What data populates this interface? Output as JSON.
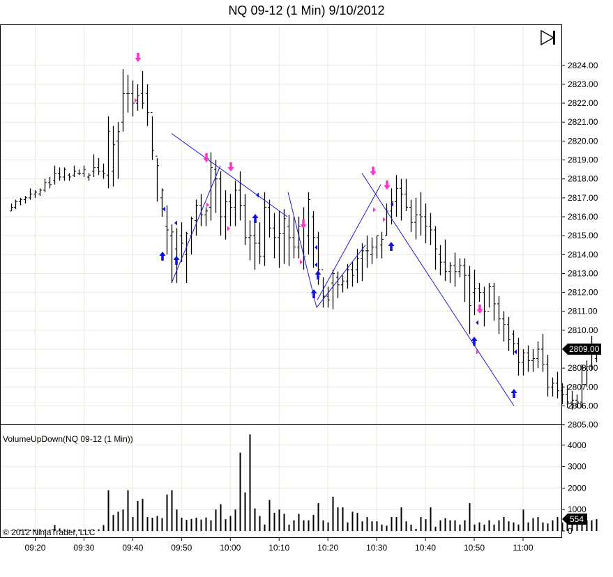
{
  "title": "NQ 09-12 (1 Min)  9/10/2012",
  "indicator_label": "VolumeUpDown(NQ 09-12 (1 Min))",
  "copyright": "© 2012 NinjaTrader, LLC",
  "last_price_label": "2809.00",
  "last_volume_label": "554",
  "colors": {
    "bar": "#000000",
    "trendline": "#1a1ad6",
    "buy_arrow": "#1010e0",
    "sell_arrow": "#ff33cc",
    "grid": "#ece7dc",
    "flag_bg": "#000000"
  },
  "chart_data": {
    "type": "ohlc",
    "x_tick_labels": [
      "09:20",
      "09:30",
      "09:40",
      "09:50",
      "10:00",
      "10:10",
      "10:20",
      "10:30",
      "10:40",
      "10:50",
      "11:00"
    ],
    "price_axis": {
      "ylim": [
        2804.0,
        2824.75
      ],
      "tick_labels": [
        "2805.00",
        "2806.00",
        "2807.00",
        "2808.00",
        "2809.00",
        "2810.00",
        "2811.00",
        "2812.00",
        "2813.00",
        "2814.00",
        "2815.00",
        "2816.00",
        "2817.00",
        "2818.00",
        "2819.00",
        "2820.00",
        "2821.00",
        "2822.00",
        "2823.00",
        "2824.00"
      ]
    },
    "volume_axis": {
      "ylim": [
        0,
        4700
      ],
      "tick_labels": [
        "0",
        "1000",
        "2000",
        "3000",
        "4000"
      ]
    },
    "bars_start_time": "09:15",
    "bars": [
      [
        2816.3,
        2816.7,
        2816.3,
        2816.5
      ],
      [
        2816.5,
        2816.9,
        2816.4,
        2816.8
      ],
      [
        2816.8,
        2817.0,
        2816.6,
        2816.9
      ],
      [
        2816.9,
        2817.1,
        2816.7,
        2817.0
      ],
      [
        2817.0,
        2817.5,
        2816.9,
        2817.2
      ],
      [
        2817.2,
        2817.4,
        2817.0,
        2817.3
      ],
      [
        2817.2,
        2817.5,
        2817.1,
        2817.4
      ],
      [
        2817.4,
        2818.0,
        2817.3,
        2817.8
      ],
      [
        2817.8,
        2818.1,
        2817.5,
        2817.7
      ],
      [
        2817.9,
        2818.7,
        2817.7,
        2818.3
      ],
      [
        2818.3,
        2818.6,
        2817.9,
        2818.1
      ],
      [
        2818.1,
        2818.6,
        2817.9,
        2818.5
      ],
      [
        2818.2,
        2818.3,
        2817.9,
        2818.1
      ],
      [
        2818.2,
        2818.7,
        2818.1,
        2818.4
      ],
      [
        2818.3,
        2818.5,
        2818.2,
        2818.3
      ],
      [
        2818.3,
        2818.7,
        2818.1,
        2818.5
      ],
      [
        2818.1,
        2818.3,
        2817.9,
        2818.2
      ],
      [
        2818.4,
        2819.3,
        2818.1,
        2818.6
      ],
      [
        2818.6,
        2819.1,
        2818.2,
        2818.4
      ],
      [
        2818.4,
        2818.8,
        2818.0,
        2818.3
      ],
      [
        2818.2,
        2821.3,
        2817.5,
        2820.5
      ],
      [
        2818.4,
        2820.8,
        2817.6,
        2819.8
      ],
      [
        2820.0,
        2821.0,
        2818.0,
        2820.5
      ],
      [
        2821.0,
        2823.8,
        2820.5,
        2822.5
      ],
      [
        2822.5,
        2823.5,
        2821.5,
        2822.5
      ],
      [
        2822.5,
        2823.2,
        2821.3,
        2822.0
      ],
      [
        2822.0,
        2823.0,
        2821.6,
        2822.4
      ],
      [
        2822.5,
        2823.7,
        2821.7,
        2822.0
      ],
      [
        2822.5,
        2823.0,
        2820.8,
        2821.5
      ],
      [
        2821.5,
        2821.3,
        2819.0,
        2819.5
      ],
      [
        2819.2,
        2819.1,
        2816.8,
        2818.7
      ],
      [
        2817.0,
        2817.5,
        2816.0,
        2817.4
      ],
      [
        2815.5,
        2816.6,
        2814.0,
        2815.3
      ],
      [
        2815.0,
        2815.6,
        2812.5,
        2815.2
      ],
      [
        2814.3,
        2815.4,
        2812.5,
        2813.8
      ],
      [
        2815.0,
        2815.7,
        2813.6,
        2814.6
      ],
      [
        2814.0,
        2815.2,
        2812.5,
        2815.1
      ],
      [
        2815.0,
        2816.0,
        2814.0,
        2815.9
      ],
      [
        2815.8,
        2816.9,
        2815.0,
        2816.6
      ],
      [
        2816.6,
        2817.2,
        2815.5,
        2816.1
      ],
      [
        2816.1,
        2816.5,
        2815.5,
        2816.3
      ],
      [
        2816.5,
        2819.4,
        2815.8,
        2818.6
      ],
      [
        2818.5,
        2819.0,
        2816.2,
        2818.0
      ],
      [
        2818.0,
        2818.4,
        2815.0,
        2816.0
      ],
      [
        2816.0,
        2817.4,
        2814.8,
        2816.8
      ],
      [
        2816.8,
        2817.2,
        2815.5,
        2816.5
      ],
      [
        2816.5,
        2817.9,
        2815.5,
        2817.4
      ],
      [
        2817.4,
        2818.4,
        2815.8,
        2816.6
      ],
      [
        2816.6,
        2817.2,
        2814.5,
        2814.9
      ],
      [
        2814.9,
        2815.8,
        2813.7,
        2815.0
      ],
      [
        2815.0,
        2815.8,
        2813.2,
        2814.6
      ],
      [
        2814.6,
        2815.7,
        2813.5,
        2813.9
      ],
      [
        2813.9,
        2817.3,
        2813.4,
        2816.5
      ],
      [
        2816.5,
        2816.9,
        2814.9,
        2815.4
      ],
      [
        2815.4,
        2816.2,
        2813.8,
        2814.9
      ],
      [
        2814.9,
        2816.3,
        2813.3,
        2815.1
      ],
      [
        2815.1,
        2816.4,
        2813.5,
        2815.9
      ],
      [
        2815.5,
        2816.1,
        2813.4,
        2814.9
      ],
      [
        2814.9,
        2816.0,
        2813.8,
        2814.4
      ],
      [
        2814.4,
        2816.0,
        2813.8,
        2815.5
      ],
      [
        2815.5,
        2816.5,
        2813.2,
        2813.9
      ],
      [
        2815.0,
        2817.3,
        2814.0,
        2816.9
      ],
      [
        2816.0,
        2816.3,
        2813.3,
        2814.9
      ],
      [
        2814.9,
        2815.2,
        2812.4,
        2813.2
      ],
      [
        2813.2,
        2812.8,
        2811.2,
        2811.8
      ],
      [
        2811.8,
        2812.3,
        2811.2,
        2811.6
      ],
      [
        2812.5,
        2813.2,
        2811.1,
        2813.0
      ],
      [
        2812.8,
        2813.1,
        2811.7,
        2812.4
      ],
      [
        2812.4,
        2812.9,
        2812.0,
        2812.6
      ],
      [
        2812.6,
        2813.5,
        2812.2,
        2813.2
      ],
      [
        2813.2,
        2813.6,
        2812.3,
        2812.9
      ],
      [
        2813.2,
        2814.3,
        2812.5,
        2813.8
      ],
      [
        2813.8,
        2814.6,
        2812.6,
        2814.2
      ],
      [
        2814.2,
        2815.0,
        2813.3,
        2814.2
      ],
      [
        2814.0,
        2814.9,
        2813.5,
        2814.4
      ],
      [
        2814.4,
        2815.0,
        2813.8,
        2815.0
      ],
      [
        2814.5,
        2815.2,
        2813.8,
        2814.8
      ],
      [
        2815.0,
        2816.7,
        2815.0,
        2816.3
      ],
      [
        2816.3,
        2817.5,
        2815.6,
        2816.8
      ],
      [
        2816.8,
        2818.2,
        2816.0,
        2817.5
      ],
      [
        2817.5,
        2818.0,
        2815.8,
        2817.2
      ],
      [
        2817.2,
        2818.0,
        2816.3,
        2816.5
      ],
      [
        2816.5,
        2816.9,
        2815.2,
        2815.7
      ],
      [
        2815.7,
        2817.0,
        2814.8,
        2816.1
      ],
      [
        2816.1,
        2817.3,
        2815.0,
        2816.0
      ],
      [
        2816.0,
        2816.7,
        2814.6,
        2815.5
      ],
      [
        2815.5,
        2816.2,
        2814.5,
        2815.3
      ],
      [
        2815.3,
        2815.5,
        2813.2,
        2814.3
      ],
      [
        2814.0,
        2814.5,
        2812.9,
        2813.6
      ],
      [
        2813.6,
        2814.8,
        2812.6,
        2813.1
      ],
      [
        2813.1,
        2813.6,
        2812.5,
        2813.4
      ],
      [
        2813.4,
        2814.1,
        2812.3,
        2813.1
      ],
      [
        2813.1,
        2813.8,
        2812.8,
        2813.4
      ],
      [
        2813.4,
        2813.8,
        2811.5,
        2812.9
      ],
      [
        2812.9,
        2813.4,
        2809.8,
        2811.3
      ],
      [
        2812.0,
        2813.2,
        2810.8,
        2812.2
      ],
      [
        2812.2,
        2812.5,
        2811.5,
        2812.0
      ],
      [
        2812.0,
        2812.3,
        2810.2,
        2811.0
      ],
      [
        2811.0,
        2812.5,
        2811.2,
        2812.3
      ],
      [
        2812.3,
        2812.5,
        2810.5,
        2811.4
      ],
      [
        2811.4,
        2811.8,
        2809.8,
        2810.6
      ],
      [
        2810.6,
        2811.0,
        2809.4,
        2810.3
      ],
      [
        2810.3,
        2810.7,
        2808.9,
        2809.5
      ],
      [
        2809.8,
        2810.0,
        2808.7,
        2809.3
      ],
      [
        2809.3,
        2809.6,
        2807.6,
        2808.3
      ],
      [
        2808.3,
        2809.0,
        2807.6,
        2808.8
      ],
      [
        2808.8,
        2809.2,
        2807.8,
        2808.4
      ],
      [
        2808.4,
        2809.0,
        2807.8,
        2808.5
      ],
      [
        2808.5,
        2809.4,
        2808.0,
        2809.0
      ],
      [
        2809.0,
        2809.8,
        2807.8,
        2808.2
      ],
      [
        2808.2,
        2808.7,
        2806.5,
        2807.0
      ],
      [
        2807.0,
        2807.5,
        2806.5,
        2807.2
      ],
      [
        2807.2,
        2807.8,
        2806.4,
        2806.8
      ],
      [
        2806.8,
        2807.2,
        2806.1,
        2806.6
      ],
      [
        2806.6,
        2807.1,
        2805.9,
        2806.2
      ],
      [
        2806.2,
        2806.8,
        2805.8,
        2806.3
      ],
      [
        2806.3,
        2806.6,
        2805.9,
        2806.2
      ],
      [
        2806.2,
        2808.2,
        2805.9,
        2808.0
      ],
      [
        2808.0,
        2808.4,
        2807.0,
        2808.1
      ],
      [
        2808.1,
        2809.7,
        2807.9,
        2808.8
      ],
      [
        2808.5,
        2809.3,
        2808.3,
        2809.0
      ]
    ],
    "volumes": [
      20,
      30,
      60,
      80,
      60,
      60,
      80,
      60,
      60,
      280,
      120,
      80,
      60,
      70,
      80,
      60,
      60,
      60,
      80,
      280,
      1900,
      750,
      900,
      1000,
      1900,
      650,
      1400,
      1500,
      650,
      620,
      700,
      600,
      1700,
      1900,
      1000,
      620,
      520,
      560,
      620,
      530,
      630,
      500,
      1000,
      1250,
      550,
      700,
      1000,
      3650,
      1800,
      4500,
      1050,
      700,
      300,
      1450,
      850,
      1000,
      800,
      300,
      500,
      800,
      500,
      500,
      750,
      1300,
      500,
      400,
      1600,
      1100,
      1100,
      400,
      900,
      850,
      450,
      650,
      450,
      450,
      300,
      250,
      650,
      650,
      1100,
      450,
      300,
      100,
      650,
      550,
      1100,
      200,
      500,
      600,
      500,
      500,
      300,
      500,
      1300,
      300,
      400,
      300,
      500,
      300,
      500,
      650,
      450,
      400,
      300,
      1000,
      400,
      600,
      650,
      400,
      350,
      500,
      650,
      400,
      700,
      600,
      600,
      400,
      500,
      500,
      554
    ],
    "trend_lines": [
      [
        [
          2.7,
          2820.4
        ],
        [
          2.0,
          2816.0
        ]
      ],
      [
        [
          3.64,
          2812.5
        ],
        [
          4.18,
          2818.8
        ]
      ]
    ]
  }
}
